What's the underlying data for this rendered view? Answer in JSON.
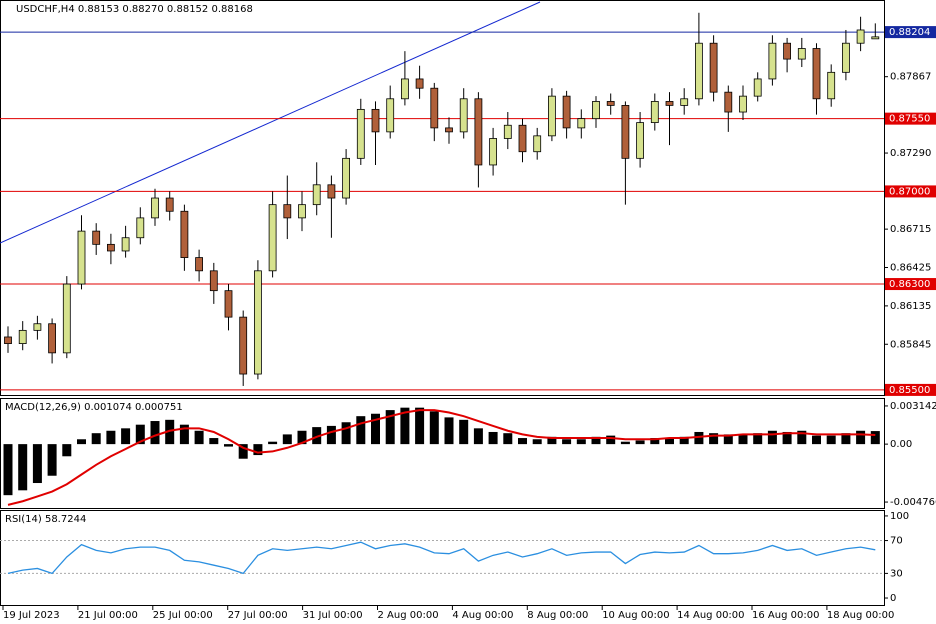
{
  "chart_data": [
    {
      "type": "candlestick",
      "title": "USDCHF,H4  0.88153 0.88270 0.88152 0.88168",
      "up_color": "#d6e28e",
      "down_color": "#b0603a",
      "ylim": [
        0.85454,
        0.88439
      ],
      "yticks": [
        {
          "value": 0.87867,
          "label": "0.87867"
        },
        {
          "value": 0.8729,
          "label": "0.87290"
        },
        {
          "value": 0.86715,
          "label": "0.86715"
        },
        {
          "value": 0.86425,
          "label": "0.86425"
        },
        {
          "value": 0.86135,
          "label": "0.86135"
        },
        {
          "value": 0.85845,
          "label": "0.85845"
        }
      ],
      "levels": [
        {
          "value": 0.8755,
          "label": "0.87550"
        },
        {
          "value": 0.87,
          "label": "0.87000"
        },
        {
          "value": 0.863,
          "label": "0.86300"
        },
        {
          "value": 0.855,
          "label": "0.85500"
        }
      ],
      "level_color": "#e00000",
      "price_line": {
        "value": 0.88204,
        "label": "0.88204",
        "color": "#1428a0"
      },
      "date_labels": [
        "19 Jul 2023",
        "21 Jul 00:00",
        "25 Jul 00:00",
        "27 Jul 00:00",
        "31 Jul 00:00",
        "2 Aug 00:00",
        "4 Aug 00:00",
        "8 Aug 00:00",
        "10 Aug 00:00",
        "14 Aug 00:00",
        "16 Aug 00:00",
        "18 Aug 00:00"
      ],
      "ohlc": [
        [
          0.859,
          0.8598,
          0.8578,
          0.8585
        ],
        [
          0.8585,
          0.8602,
          0.858,
          0.8595
        ],
        [
          0.8595,
          0.8606,
          0.8588,
          0.86
        ],
        [
          0.86,
          0.8604,
          0.857,
          0.8578
        ],
        [
          0.8578,
          0.8636,
          0.8574,
          0.863
        ],
        [
          0.863,
          0.8682,
          0.8626,
          0.867
        ],
        [
          0.867,
          0.8676,
          0.8652,
          0.866
        ],
        [
          0.866,
          0.8668,
          0.8645,
          0.8655
        ],
        [
          0.8655,
          0.8674,
          0.865,
          0.8665
        ],
        [
          0.8665,
          0.8688,
          0.866,
          0.868
        ],
        [
          0.868,
          0.8702,
          0.8674,
          0.8695
        ],
        [
          0.8695,
          0.87,
          0.8678,
          0.8685
        ],
        [
          0.8685,
          0.869,
          0.864,
          0.865
        ],
        [
          0.865,
          0.8656,
          0.8632,
          0.864
        ],
        [
          0.864,
          0.8646,
          0.8615,
          0.8625
        ],
        [
          0.8625,
          0.863,
          0.8595,
          0.8605
        ],
        [
          0.8605,
          0.861,
          0.8553,
          0.8562
        ],
        [
          0.8562,
          0.8648,
          0.8558,
          0.864
        ],
        [
          0.864,
          0.87,
          0.8635,
          0.869
        ],
        [
          0.869,
          0.8712,
          0.8664,
          0.868
        ],
        [
          0.868,
          0.87,
          0.867,
          0.869
        ],
        [
          0.869,
          0.8722,
          0.8682,
          0.8705
        ],
        [
          0.8705,
          0.8712,
          0.8665,
          0.8695
        ],
        [
          0.8695,
          0.8732,
          0.869,
          0.8725
        ],
        [
          0.8725,
          0.877,
          0.872,
          0.8762
        ],
        [
          0.8762,
          0.8768,
          0.872,
          0.8745
        ],
        [
          0.8745,
          0.878,
          0.874,
          0.877
        ],
        [
          0.877,
          0.8806,
          0.8765,
          0.8785
        ],
        [
          0.8785,
          0.8795,
          0.877,
          0.8778
        ],
        [
          0.8778,
          0.8782,
          0.8738,
          0.8748
        ],
        [
          0.8748,
          0.8756,
          0.8736,
          0.8745
        ],
        [
          0.8745,
          0.8778,
          0.874,
          0.877
        ],
        [
          0.877,
          0.8775,
          0.8703,
          0.872
        ],
        [
          0.872,
          0.8748,
          0.8712,
          0.874
        ],
        [
          0.874,
          0.876,
          0.8732,
          0.875
        ],
        [
          0.875,
          0.8755,
          0.8722,
          0.873
        ],
        [
          0.873,
          0.8748,
          0.8724,
          0.8742
        ],
        [
          0.8742,
          0.8778,
          0.8738,
          0.8772
        ],
        [
          0.8772,
          0.8776,
          0.874,
          0.8748
        ],
        [
          0.8748,
          0.8762,
          0.874,
          0.8755
        ],
        [
          0.8755,
          0.8772,
          0.8748,
          0.8768
        ],
        [
          0.8768,
          0.8774,
          0.8758,
          0.8765
        ],
        [
          0.8765,
          0.8768,
          0.869,
          0.8725
        ],
        [
          0.8725,
          0.876,
          0.8718,
          0.8752
        ],
        [
          0.8752,
          0.8774,
          0.8746,
          0.8768
        ],
        [
          0.8768,
          0.8775,
          0.8735,
          0.8765
        ],
        [
          0.8765,
          0.8778,
          0.8758,
          0.877
        ],
        [
          0.877,
          0.8835,
          0.8765,
          0.8812
        ],
        [
          0.8812,
          0.8818,
          0.8768,
          0.8775
        ],
        [
          0.8775,
          0.878,
          0.8745,
          0.876
        ],
        [
          0.876,
          0.878,
          0.8754,
          0.8772
        ],
        [
          0.8772,
          0.879,
          0.8768,
          0.8785
        ],
        [
          0.8785,
          0.8818,
          0.878,
          0.8812
        ],
        [
          0.8812,
          0.8816,
          0.879,
          0.88
        ],
        [
          0.88,
          0.8816,
          0.8794,
          0.8808
        ],
        [
          0.8808,
          0.8812,
          0.8758,
          0.877
        ],
        [
          0.877,
          0.8796,
          0.8764,
          0.879
        ],
        [
          0.879,
          0.8822,
          0.8784,
          0.8812
        ],
        [
          0.8812,
          0.8832,
          0.8806,
          0.8822
        ],
        [
          0.88153,
          0.8827,
          0.88152,
          0.88168
        ]
      ]
    },
    {
      "type": "macd",
      "title": "MACD(12,26,9) 0.001074 0.000751",
      "ylim": [
        -0.005255,
        0.003713
      ],
      "yticks": [
        0.003142,
        {
          "value": 0,
          "label": "0.00"
        },
        -0.004766
      ],
      "histogram_color": "#000000",
      "signal_color": "#e00000",
      "histogram": [
        -0.0042,
        -0.0038,
        -0.0032,
        -0.0026,
        -0.001,
        0.0004,
        0.0009,
        0.0011,
        0.0013,
        0.0016,
        0.0019,
        0.002,
        0.0016,
        0.0011,
        0.0005,
        -0.0002,
        -0.0012,
        -0.0009,
        0.0002,
        0.0008,
        0.0011,
        0.0014,
        0.0015,
        0.0018,
        0.0023,
        0.0025,
        0.0028,
        0.003,
        0.003,
        0.0027,
        0.0022,
        0.002,
        0.0013,
        0.001,
        0.0009,
        0.0005,
        0.0004,
        0.0006,
        0.0004,
        0.0004,
        0.0006,
        0.0007,
        0.0002,
        0.0003,
        0.0005,
        0.0005,
        0.0006,
        0.001,
        0.0009,
        0.0008,
        0.0008,
        0.0009,
        0.0011,
        0.001,
        0.0011,
        0.0007,
        0.0007,
        0.0009,
        0.0011,
        0.001074
      ],
      "signal": [
        -0.005,
        -0.0047,
        -0.0043,
        -0.0039,
        -0.0033,
        -0.0025,
        -0.0017,
        -0.001,
        -0.0004,
        0.0002,
        0.0007,
        0.0011,
        0.0013,
        0.0013,
        0.001,
        0.0004,
        -0.0003,
        -0.0007,
        -0.0006,
        -0.0003,
        0.0001,
        0.0006,
        0.001,
        0.0013,
        0.0017,
        0.002,
        0.0023,
        0.0026,
        0.0028,
        0.0028,
        0.0026,
        0.0023,
        0.0019,
        0.0015,
        0.0011,
        0.0008,
        0.0006,
        0.0005,
        0.0005,
        0.0005,
        0.0005,
        0.0005,
        0.0004,
        0.0004,
        0.0004,
        0.0005,
        0.0005,
        0.0006,
        0.0007,
        0.0007,
        0.0008,
        0.0008,
        0.0008,
        0.0009,
        0.0009,
        0.0008,
        0.0008,
        0.0008,
        0.0008,
        0.000751
      ]
    },
    {
      "type": "line",
      "title": "RSI(14) 58.7244",
      "ylim": [
        -8.5,
        106
      ],
      "yticks": [
        100,
        70,
        30,
        0
      ],
      "dashed_levels": [
        70,
        30
      ],
      "color": "#2b8fe0",
      "values": [
        30,
        34,
        36,
        30,
        50,
        65,
        58,
        55,
        60,
        62,
        62,
        58,
        46,
        44,
        40,
        36,
        30,
        52,
        60,
        58,
        60,
        62,
        60,
        64,
        68,
        60,
        64,
        66,
        62,
        55,
        54,
        60,
        45,
        52,
        56,
        50,
        54,
        60,
        52,
        55,
        56,
        56,
        42,
        53,
        56,
        55,
        56,
        64,
        54,
        54,
        55,
        58,
        64,
        58,
        60,
        52,
        56,
        60,
        62,
        58.7244
      ]
    }
  ]
}
